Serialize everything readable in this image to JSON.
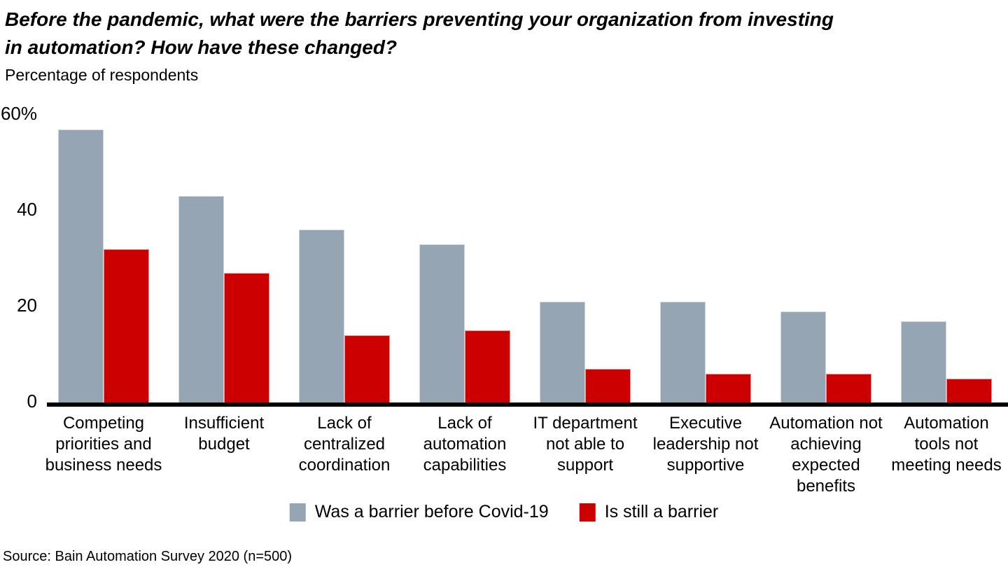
{
  "title": {
    "line1": "Before the pandemic, what were the barriers preventing your organization from investing",
    "line2": "in automation? How have these changed?"
  },
  "subtitle": "Percentage of respondents",
  "source": "Source: Bain Automation Survey 2020 (n=500)",
  "chart_data": {
    "type": "bar",
    "title": "Before the pandemic, what were the barriers preventing your organization from investing in automation? How have these changed?",
    "ylabel": "Percentage of respondents",
    "xlabel": "",
    "ylim": [
      0,
      60
    ],
    "grid": false,
    "legend_position": "bottom",
    "yticks": [
      {
        "value": 0,
        "label": "0"
      },
      {
        "value": 20,
        "label": "20"
      },
      {
        "value": 40,
        "label": "40"
      },
      {
        "value": 60,
        "label": "60%"
      }
    ],
    "categories": [
      "Competing priorities and business needs",
      "Insufficient budget",
      "Lack of centralized coordination",
      "Lack of automation capabilities",
      "IT department not able to support",
      "Executive leadership not supportive",
      "Automation not achieving expected benefits",
      "Automation tools not meeting needs"
    ],
    "series": [
      {
        "name": "Was a barrier before Covid-19",
        "color": "#96a5b3",
        "values": [
          57,
          43,
          36,
          33,
          21,
          21,
          19,
          17
        ]
      },
      {
        "name": "Is still a barrier",
        "color": "#cc0000",
        "values": [
          32,
          27,
          14,
          15,
          7,
          6,
          6,
          5
        ]
      }
    ]
  }
}
